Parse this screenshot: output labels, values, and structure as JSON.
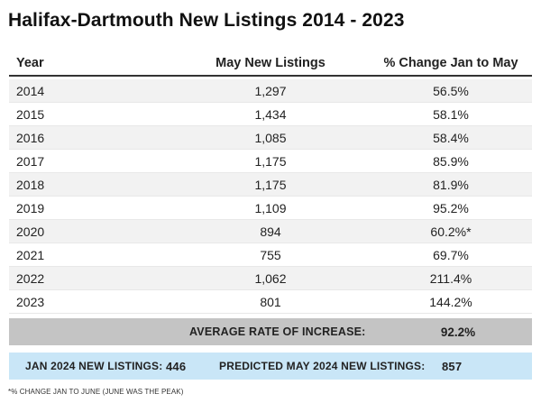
{
  "title": "Halifax-Dartmouth New Listings 2014 - 2023",
  "table": {
    "headers": [
      "Year",
      "May New Listings",
      "% Change Jan to May"
    ],
    "rows": [
      [
        "2014",
        "1,297",
        "56.5%"
      ],
      [
        "2015",
        "1,434",
        "58.1%"
      ],
      [
        "2016",
        "1,085",
        "58.4%"
      ],
      [
        "2017",
        "1,175",
        "85.9%"
      ],
      [
        "2018",
        "1,175",
        "81.9%"
      ],
      [
        "2019",
        "1,109",
        "95.2%"
      ],
      [
        "2020",
        "894",
        "60.2%*"
      ],
      [
        "2021",
        "755",
        "69.7%"
      ],
      [
        "2022",
        "1,062",
        "211.4%"
      ],
      [
        "2023",
        "801",
        "144.2%"
      ]
    ]
  },
  "average": {
    "label": "AVERAGE RATE OF INCREASE:",
    "value": "92.2%"
  },
  "prediction": {
    "jan_label": "JAN 2024 NEW LISTINGS:",
    "jan_value": "446",
    "may_label": "PREDICTED MAY 2024 NEW LISTINGS:",
    "may_value": "857"
  },
  "footnote": "*% CHANGE JAN TO JUNE (JUNE WAS THE PEAK)",
  "colors": {
    "row_stripe": "#f2f2f2",
    "average_band": "#c4c4c4",
    "prediction_band": "#c9e6f7"
  }
}
